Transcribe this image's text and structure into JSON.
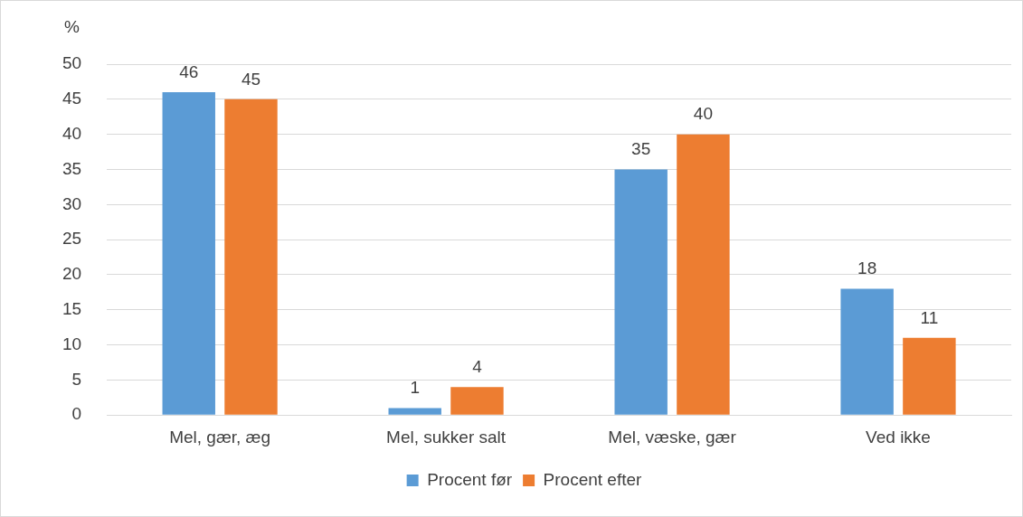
{
  "chart_data": {
    "type": "bar",
    "ylabel": "%",
    "categories": [
      "Mel, gær, æg",
      "Mel, sukker salt",
      "Mel, væske, gær",
      "Ved ikke"
    ],
    "series": [
      {
        "name": "Procent før",
        "color": "#5b9bd5",
        "values": [
          46,
          1,
          35,
          18
        ]
      },
      {
        "name": "Procent efter",
        "color": "#ed7d31",
        "values": [
          45,
          4,
          40,
          11
        ]
      }
    ],
    "ylim": [
      0,
      50
    ],
    "yticks": [
      0,
      5,
      10,
      15,
      20,
      25,
      30,
      35,
      40,
      45,
      50
    ],
    "grid": "y",
    "legend": "bottom",
    "data_labels": true
  }
}
